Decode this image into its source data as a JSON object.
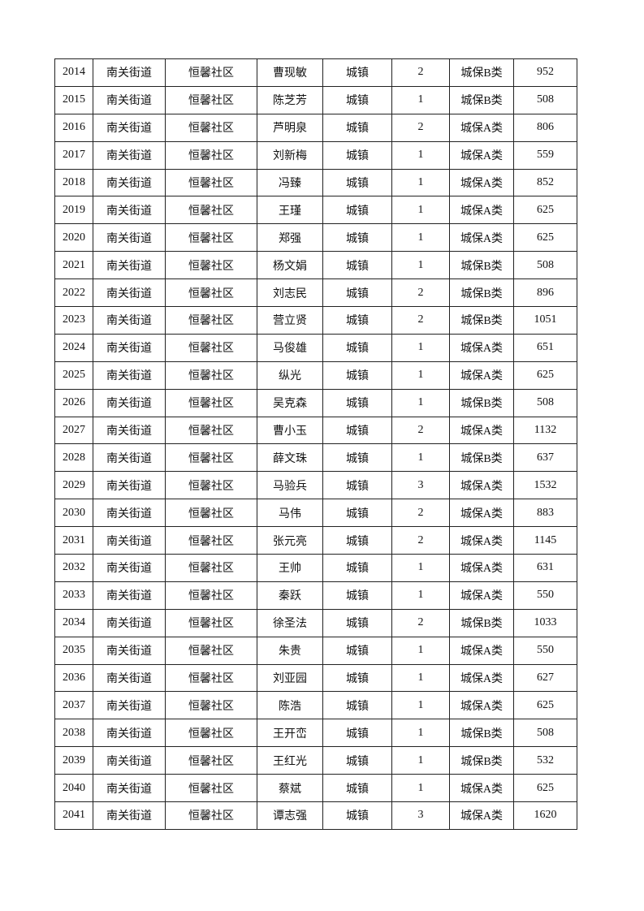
{
  "table": {
    "rows": [
      [
        "2014",
        "南关街道",
        "恒馨社区",
        "曹现敏",
        "城镇",
        "2",
        "城保B类",
        "952"
      ],
      [
        "2015",
        "南关街道",
        "恒馨社区",
        "陈芝芳",
        "城镇",
        "1",
        "城保B类",
        "508"
      ],
      [
        "2016",
        "南关街道",
        "恒馨社区",
        "芦明泉",
        "城镇",
        "2",
        "城保A类",
        "806"
      ],
      [
        "2017",
        "南关街道",
        "恒馨社区",
        "刘新梅",
        "城镇",
        "1",
        "城保A类",
        "559"
      ],
      [
        "2018",
        "南关街道",
        "恒馨社区",
        "冯臻",
        "城镇",
        "1",
        "城保A类",
        "852"
      ],
      [
        "2019",
        "南关街道",
        "恒馨社区",
        "王瑾",
        "城镇",
        "1",
        "城保A类",
        "625"
      ],
      [
        "2020",
        "南关街道",
        "恒馨社区",
        "郑强",
        "城镇",
        "1",
        "城保A类",
        "625"
      ],
      [
        "2021",
        "南关街道",
        "恒馨社区",
        "杨文娟",
        "城镇",
        "1",
        "城保B类",
        "508"
      ],
      [
        "2022",
        "南关街道",
        "恒馨社区",
        "刘志民",
        "城镇",
        "2",
        "城保B类",
        "896"
      ],
      [
        "2023",
        "南关街道",
        "恒馨社区",
        "营立贤",
        "城镇",
        "2",
        "城保B类",
        "1051"
      ],
      [
        "2024",
        "南关街道",
        "恒馨社区",
        "马俊雄",
        "城镇",
        "1",
        "城保A类",
        "651"
      ],
      [
        "2025",
        "南关街道",
        "恒馨社区",
        "纵光",
        "城镇",
        "1",
        "城保A类",
        "625"
      ],
      [
        "2026",
        "南关街道",
        "恒馨社区",
        "吴克森",
        "城镇",
        "1",
        "城保B类",
        "508"
      ],
      [
        "2027",
        "南关街道",
        "恒馨社区",
        "曹小玉",
        "城镇",
        "2",
        "城保A类",
        "1132"
      ],
      [
        "2028",
        "南关街道",
        "恒馨社区",
        "薛文珠",
        "城镇",
        "1",
        "城保B类",
        "637"
      ],
      [
        "2029",
        "南关街道",
        "恒馨社区",
        "马验兵",
        "城镇",
        "3",
        "城保A类",
        "1532"
      ],
      [
        "2030",
        "南关街道",
        "恒馨社区",
        "马伟",
        "城镇",
        "2",
        "城保A类",
        "883"
      ],
      [
        "2031",
        "南关街道",
        "恒馨社区",
        "张元亮",
        "城镇",
        "2",
        "城保A类",
        "1145"
      ],
      [
        "2032",
        "南关街道",
        "恒馨社区",
        "王帅",
        "城镇",
        "1",
        "城保A类",
        "631"
      ],
      [
        "2033",
        "南关街道",
        "恒馨社区",
        "秦跃",
        "城镇",
        "1",
        "城保A类",
        "550"
      ],
      [
        "2034",
        "南关街道",
        "恒馨社区",
        "徐圣法",
        "城镇",
        "2",
        "城保B类",
        "1033"
      ],
      [
        "2035",
        "南关街道",
        "恒馨社区",
        "朱贵",
        "城镇",
        "1",
        "城保A类",
        "550"
      ],
      [
        "2036",
        "南关街道",
        "恒馨社区",
        "刘亚园",
        "城镇",
        "1",
        "城保A类",
        "627"
      ],
      [
        "2037",
        "南关街道",
        "恒馨社区",
        "陈浩",
        "城镇",
        "1",
        "城保A类",
        "625"
      ],
      [
        "2038",
        "南关街道",
        "恒馨社区",
        "王开峦",
        "城镇",
        "1",
        "城保B类",
        "508"
      ],
      [
        "2039",
        "南关街道",
        "恒馨社区",
        "王红光",
        "城镇",
        "1",
        "城保B类",
        "532"
      ],
      [
        "2040",
        "南关街道",
        "恒馨社区",
        "蔡斌",
        "城镇",
        "1",
        "城保A类",
        "625"
      ],
      [
        "2041",
        "南关街道",
        "恒馨社区",
        "谭志强",
        "城镇",
        "3",
        "城保A类",
        "1620"
      ]
    ]
  }
}
